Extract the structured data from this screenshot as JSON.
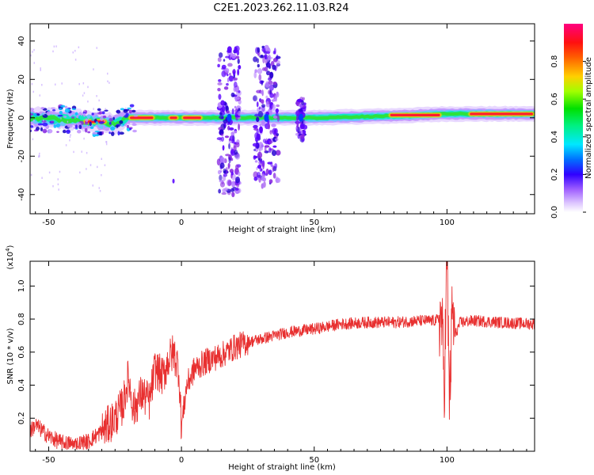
{
  "title": "C2E1.2023.262.11.03.R24",
  "chart_data": [
    {
      "type": "heatmap",
      "xlabel": "Height of straight line (km)",
      "ylabel": "Frequency (Hz)",
      "xlim": [
        -57,
        133
      ],
      "ylim": [
        -50,
        49
      ],
      "xticks": [
        -50,
        0,
        50,
        100
      ],
      "yticks": [
        -40,
        -20,
        0,
        20,
        40
      ],
      "colorbar": {
        "label": "Normalized spectral amplitude",
        "range": [
          0,
          1
        ],
        "ticks": [
          "0.0",
          "0.2",
          "0.4",
          "0.6",
          "0.8"
        ],
        "colormap": [
          "#ffffff",
          "#dcc4ff",
          "#8a2be2",
          "#2f00ff",
          "#00b0ff",
          "#00ffd0",
          "#00e000",
          "#c8ff00",
          "#ffc000",
          "#ff2000",
          "#ff0080"
        ]
      },
      "ridge_center_hz": [
        [
          -57,
          0
        ],
        [
          -40,
          -1
        ],
        [
          -25,
          -3
        ],
        [
          -20,
          0
        ],
        [
          0,
          0
        ],
        [
          20,
          0
        ],
        [
          50,
          0
        ],
        [
          80,
          1
        ],
        [
          100,
          2
        ],
        [
          133,
          2
        ]
      ],
      "hot_segments_km": [
        [
          -37,
          -28
        ],
        [
          -20,
          -10
        ],
        [
          -5,
          -1
        ],
        [
          0,
          8
        ],
        [
          78,
          98
        ],
        [
          108,
          133
        ]
      ],
      "bursts": [
        {
          "center_km": 18,
          "width_km": 8,
          "freq_range_hz": [
            -40,
            36
          ]
        },
        {
          "center_km": 32,
          "width_km": 9,
          "freq_range_hz": [
            -36,
            37
          ]
        },
        {
          "center_km": 45,
          "width_km": 3,
          "freq_range_hz": [
            -12,
            10
          ]
        }
      ],
      "isolated_points": [
        {
          "x": -3,
          "y": -33
        }
      ]
    },
    {
      "type": "line",
      "xlabel": "Height of straight line (km)",
      "ylabel": "SNR (10 * v/v)",
      "y_multiplier": "(x10",
      "y_multiplier_exp": "4",
      "y_multiplier_close": ")",
      "xlim": [
        -57,
        133
      ],
      "ylim": [
        0,
        1.15
      ],
      "xticks": [
        -50,
        0,
        50,
        100
      ],
      "yticks": [
        "0.2",
        "0.4",
        "0.6",
        "0.8",
        "1.0"
      ],
      "ytick_values": [
        0.2,
        0.4,
        0.6,
        0.8,
        1.0
      ],
      "series_color": "#e83030",
      "series": [
        {
          "x": [
            -57,
            -55,
            -50,
            -45,
            -40,
            -35,
            -30,
            -25,
            -22,
            -20,
            -18,
            -15,
            -12,
            -10,
            -7,
            -5,
            -3,
            -1,
            0,
            2,
            5,
            10,
            15,
            20,
            25,
            30,
            40,
            50,
            60,
            70,
            80,
            90,
            95,
            98,
            99,
            100,
            101,
            102,
            103,
            105,
            110,
            120,
            133
          ],
          "y": [
            0.12,
            0.16,
            0.09,
            0.05,
            0.04,
            0.06,
            0.12,
            0.2,
            0.28,
            0.45,
            0.25,
            0.35,
            0.3,
            0.5,
            0.45,
            0.55,
            0.6,
            0.5,
            0.15,
            0.4,
            0.5,
            0.55,
            0.58,
            0.63,
            0.66,
            0.68,
            0.72,
            0.74,
            0.77,
            0.78,
            0.78,
            0.79,
            0.79,
            0.8,
            0.4,
            1.15,
            0.3,
            0.85,
            0.7,
            0.78,
            0.79,
            0.78,
            0.77
          ]
        }
      ]
    }
  ]
}
